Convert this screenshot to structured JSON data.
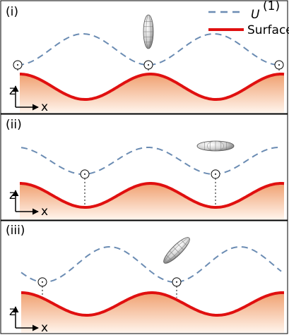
{
  "panels": [
    {
      "label": "(i)",
      "axis_z": "z",
      "axis_x": "x"
    },
    {
      "label": "(ii)",
      "axis_z": "z",
      "axis_x": "x"
    },
    {
      "label": "(iii)",
      "axis_z": "z",
      "axis_x": "x"
    }
  ],
  "legend": {
    "potential": {
      "label": "U",
      "superscript": "(1)"
    },
    "surface": {
      "label": "Surface"
    }
  }
}
